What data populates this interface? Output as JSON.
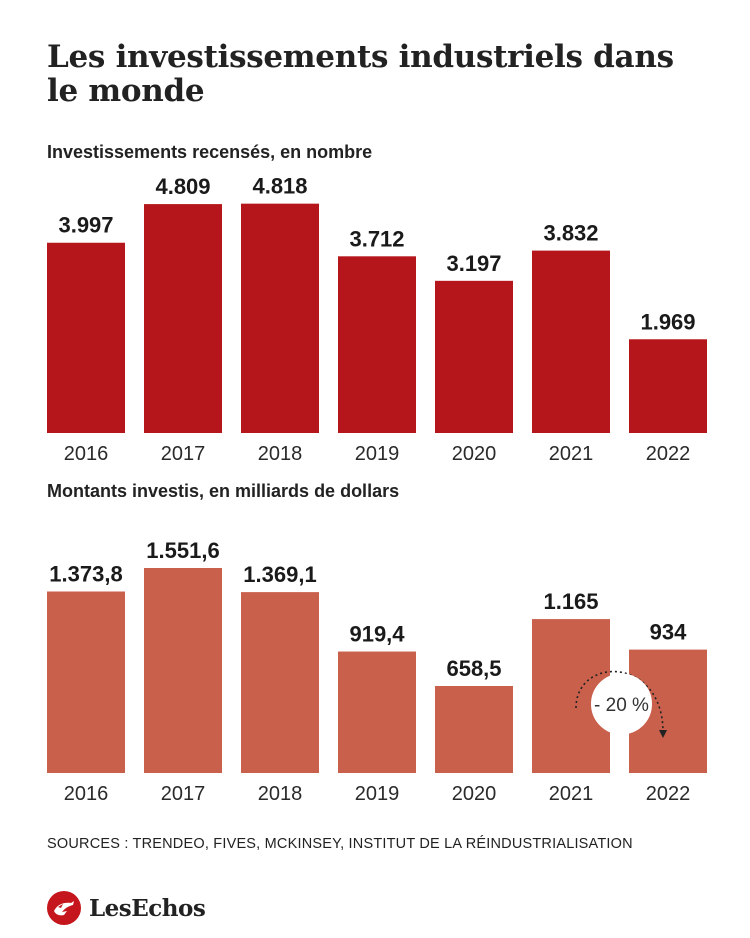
{
  "title": "Les investissements industriels dans le monde",
  "source": "SOURCES : TRENDEO, FIVES, MCKINSEY, INSTITUT DE LA RÉINDUSTRIALISATION",
  "logo": {
    "text": "LesEchos"
  },
  "colors": {
    "chart1": "#b5161b",
    "chart2": "#c9604c"
  },
  "chart_data": [
    {
      "type": "bar",
      "title": "Investissements recensés, en nombre",
      "categories": [
        "2016",
        "2017",
        "2018",
        "2019",
        "2020",
        "2021",
        "2022"
      ],
      "values": [
        3997,
        4809,
        4818,
        3712,
        3197,
        3832,
        1969
      ],
      "labels": [
        "3.997",
        "4.809",
        "4.818",
        "3.712",
        "3.197",
        "3.832",
        "1.969"
      ],
      "ylim": [
        0,
        5000
      ],
      "grid": false,
      "legend": "none"
    },
    {
      "type": "bar",
      "title": "Montants investis, en milliards de dollars",
      "categories": [
        "2016",
        "2017",
        "2018",
        "2019",
        "2020",
        "2021",
        "2022"
      ],
      "values": [
        1373.8,
        1551.6,
        1369.1,
        919.4,
        658.5,
        1165,
        934
      ],
      "labels": [
        "1.373,8",
        "1.551,6",
        "1.369,1",
        "919,4",
        "658,5",
        "1.165",
        "934"
      ],
      "ylim": [
        0,
        1650
      ],
      "grid": false,
      "legend": "none",
      "annotation": {
        "text": "- 20 %",
        "from": "2021",
        "to": "2022"
      }
    }
  ]
}
